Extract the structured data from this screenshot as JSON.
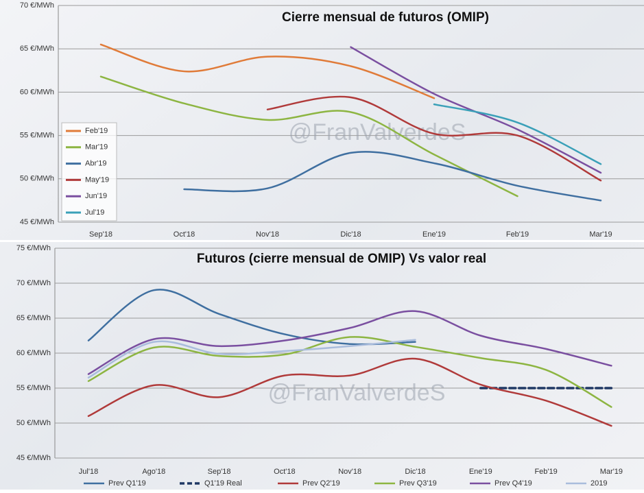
{
  "chart_data": [
    {
      "type": "line",
      "title": "Cierre mensual de futuros (OMIP)",
      "watermark": "@FranValverdeS",
      "legend": "left",
      "grid": true,
      "categories": [
        "Sep'18",
        "Oct'18",
        "Nov'18",
        "Dic'18",
        "Ene'19",
        "Feb'19",
        "Mar'19"
      ],
      "ylim": [
        45,
        70
      ],
      "yticks": [
        {
          "value": 45,
          "label": "45 €/MWh"
        },
        {
          "value": 50,
          "label": "50 €/MWh"
        },
        {
          "value": 55,
          "label": "55 €/MWh"
        },
        {
          "value": 60,
          "label": "60 €/MWh"
        },
        {
          "value": 65,
          "label": "65 €/MWh"
        },
        {
          "value": 70,
          "label": "70 €/MWh"
        }
      ],
      "series": [
        {
          "name": "Feb'19",
          "color": "#e07b39",
          "values": [
            65.5,
            62.4,
            64.1,
            63.0,
            59.3,
            null,
            null
          ]
        },
        {
          "name": "Mar'19",
          "color": "#8db542",
          "values": [
            61.8,
            58.7,
            56.8,
            57.7,
            52.8,
            48.0,
            null
          ]
        },
        {
          "name": "Abr'19",
          "color": "#3f6fa0",
          "values": [
            null,
            48.8,
            48.9,
            53.0,
            51.8,
            49.2,
            47.5
          ]
        },
        {
          "name": "May'19",
          "color": "#b03a3a",
          "values": [
            null,
            null,
            58.0,
            59.4,
            55.2,
            55.0,
            49.8
          ]
        },
        {
          "name": "Jun'19",
          "color": "#7a4fa0",
          "values": [
            null,
            null,
            null,
            65.2,
            59.8,
            55.7,
            50.7
          ]
        },
        {
          "name": "Jul'19",
          "color": "#3aa0b8",
          "values": [
            null,
            null,
            null,
            null,
            58.6,
            56.5,
            51.7
          ]
        }
      ]
    },
    {
      "type": "line",
      "title": "Futuros (cierre mensual de OMIP) Vs valor real",
      "watermark": "@FranValverdeS",
      "legend": "bottom",
      "grid": true,
      "categories": [
        "Jul'18",
        "Ago'18",
        "Sep'18",
        "Oct'18",
        "Nov'18",
        "Dic'18",
        "Ene'19",
        "Feb'19",
        "Mar'19"
      ],
      "ylim": [
        45,
        75
      ],
      "yticks": [
        {
          "value": 45,
          "label": "45 €/MWh"
        },
        {
          "value": 50,
          "label": "50 €/MWh"
        },
        {
          "value": 55,
          "label": "55 €/MWh"
        },
        {
          "value": 60,
          "label": "60 €/MWh"
        },
        {
          "value": 65,
          "label": "65 €/MWh"
        },
        {
          "value": 70,
          "label": "70 €/MWh"
        },
        {
          "value": 75,
          "label": "75 €/MWh"
        }
      ],
      "series": [
        {
          "name": "Prev Q1'19",
          "color": "#3f6fa0",
          "values": [
            61.8,
            69.0,
            65.6,
            62.7,
            61.3,
            61.6,
            null,
            null,
            null
          ]
        },
        {
          "name": "Q1'19 Real",
          "color": "#1f3864",
          "line_style": "dashed",
          "values": [
            null,
            null,
            null,
            null,
            null,
            null,
            55.0,
            55.0,
            55.0
          ]
        },
        {
          "name": "Prev Q2'19",
          "color": "#b03a3a",
          "values": [
            51.0,
            55.4,
            53.7,
            56.8,
            56.8,
            59.2,
            55.5,
            53.2,
            49.6
          ]
        },
        {
          "name": "Prev Q3'19",
          "color": "#8db542",
          "values": [
            56.0,
            60.8,
            59.6,
            59.8,
            62.3,
            60.9,
            59.3,
            57.6,
            52.3
          ]
        },
        {
          "name": "Prev Q4'19",
          "color": "#7a4fa0",
          "values": [
            57.0,
            62.0,
            61.0,
            61.8,
            63.6,
            66.0,
            62.5,
            60.6,
            58.2
          ]
        },
        {
          "name": "2019",
          "color": "#a9bcdc",
          "values": [
            56.5,
            61.6,
            59.9,
            60.3,
            61.0,
            61.9,
            null,
            null,
            null
          ]
        }
      ]
    }
  ]
}
